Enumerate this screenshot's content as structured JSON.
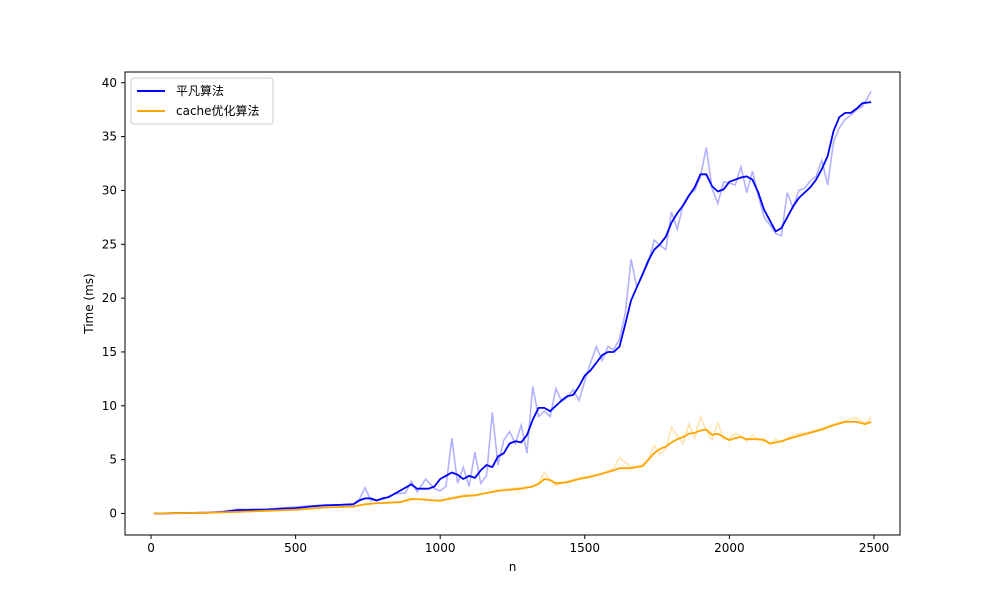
{
  "chart_data": {
    "type": "line",
    "xlabel": "n",
    "ylabel": "Time (ms)",
    "xlim": [
      -90,
      2590
    ],
    "ylim": [
      -2,
      41
    ],
    "xticks": [
      0,
      500,
      1000,
      1500,
      2000,
      2500
    ],
    "yticks": [
      0,
      5,
      10,
      15,
      20,
      25,
      30,
      35,
      40
    ],
    "grid": false,
    "legend_position": "upper-left",
    "series": [
      {
        "name": "平凡算法",
        "color": "#0000ff",
        "raw_opacity": 0.3,
        "raw_x": [
          10,
          100,
          200,
          250,
          300,
          350,
          400,
          450,
          500,
          550,
          600,
          650,
          700,
          720,
          740,
          760,
          800,
          840,
          880,
          900,
          920,
          950,
          980,
          1000,
          1020,
          1040,
          1060,
          1080,
          1100,
          1120,
          1140,
          1160,
          1180,
          1200,
          1220,
          1240,
          1260,
          1280,
          1300,
          1320,
          1340,
          1360,
          1380,
          1400,
          1420,
          1440,
          1460,
          1480,
          1500,
          1520,
          1540,
          1560,
          1580,
          1600,
          1620,
          1640,
          1660,
          1680,
          1700,
          1720,
          1740,
          1760,
          1780,
          1800,
          1820,
          1840,
          1860,
          1880,
          1900,
          1920,
          1940,
          1960,
          1980,
          2000,
          2020,
          2040,
          2060,
          2080,
          2100,
          2120,
          2140,
          2160,
          2180,
          2200,
          2220,
          2240,
          2260,
          2280,
          2300,
          2320,
          2340,
          2360,
          2380,
          2400,
          2420,
          2440,
          2460,
          2490
        ],
        "raw_y": [
          0.0,
          0.05,
          0.1,
          0.2,
          0.4,
          0.3,
          0.4,
          0.5,
          0.6,
          0.7,
          0.8,
          0.8,
          0.9,
          1.3,
          2.4,
          1.2,
          1.3,
          1.8,
          1.9,
          3.0,
          2.0,
          3.2,
          2.3,
          2.1,
          2.5,
          7.0,
          2.8,
          4.3,
          2.5,
          5.7,
          2.8,
          3.5,
          9.4,
          4.5,
          6.8,
          7.6,
          6.5,
          8.2,
          5.6,
          11.8,
          9.0,
          9.5,
          9.0,
          11.6,
          10.4,
          10.8,
          11.5,
          10.5,
          12.3,
          14.0,
          15.5,
          14.2,
          15.5,
          15.2,
          16.2,
          18.6,
          23.6,
          21.0,
          22.3,
          23.3,
          25.4,
          24.9,
          24.5,
          28.0,
          26.4,
          28.7,
          29.6,
          30.0,
          31.3,
          34.0,
          30.2,
          28.8,
          30.8,
          30.7,
          30.5,
          32.2,
          29.8,
          31.8,
          29.5,
          27.5,
          26.8,
          26.0,
          25.8,
          29.8,
          28.4,
          30.0,
          30.2,
          30.9,
          31.3,
          32.8,
          30.5,
          34.5,
          35.8,
          36.6,
          37.0,
          37.5,
          37.8,
          39.2
        ]
      },
      {
        "name": "cache优化算法",
        "color": "#ffa500",
        "raw_opacity": 0.3,
        "raw_x": [
          10,
          100,
          200,
          300,
          400,
          500,
          600,
          700,
          760,
          800,
          840,
          880,
          900,
          940,
          980,
          1000,
          1040,
          1080,
          1120,
          1160,
          1200,
          1240,
          1280,
          1320,
          1340,
          1360,
          1380,
          1400,
          1440,
          1480,
          1520,
          1560,
          1600,
          1620,
          1660,
          1700,
          1720,
          1740,
          1760,
          1780,
          1800,
          1820,
          1840,
          1860,
          1880,
          1900,
          1920,
          1940,
          1960,
          1980,
          2000,
          2020,
          2040,
          2060,
          2080,
          2100,
          2120,
          2140,
          2160,
          2180,
          2200,
          2240,
          2280,
          2320,
          2360,
          2400,
          2440,
          2470,
          2490
        ],
        "raw_y": [
          0.0,
          0.03,
          0.07,
          0.15,
          0.25,
          0.35,
          0.55,
          0.65,
          0.9,
          0.95,
          1.0,
          1.1,
          1.25,
          1.35,
          1.25,
          1.1,
          1.5,
          1.7,
          1.6,
          1.9,
          2.2,
          2.3,
          2.4,
          2.5,
          2.8,
          3.8,
          3.1,
          2.6,
          3.0,
          3.3,
          3.5,
          3.7,
          4.2,
          5.2,
          4.3,
          4.5,
          5.0,
          6.3,
          5.5,
          6.0,
          8.0,
          7.2,
          6.5,
          8.3,
          7.0,
          9.0,
          7.7,
          6.8,
          8.4,
          6.9,
          7.0,
          7.4,
          7.2,
          6.7,
          7.3,
          6.8,
          7.0,
          6.4,
          6.9,
          6.6,
          7.0,
          7.4,
          7.6,
          7.9,
          8.3,
          8.6,
          8.9,
          8.3,
          9.0
        ]
      }
    ],
    "smoothed": [
      {
        "name": "平凡算法",
        "x": [
          10,
          100,
          200,
          250,
          300,
          350,
          400,
          450,
          500,
          550,
          600,
          650,
          700,
          720,
          740,
          760,
          780,
          800,
          820,
          840,
          860,
          880,
          900,
          920,
          940,
          960,
          980,
          1000,
          1020,
          1040,
          1060,
          1080,
          1100,
          1120,
          1140,
          1160,
          1180,
          1200,
          1220,
          1240,
          1260,
          1280,
          1300,
          1320,
          1340,
          1360,
          1380,
          1400,
          1420,
          1440,
          1460,
          1480,
          1500,
          1520,
          1540,
          1560,
          1580,
          1600,
          1620,
          1640,
          1660,
          1680,
          1700,
          1720,
          1740,
          1760,
          1780,
          1800,
          1820,
          1840,
          1860,
          1880,
          1900,
          1920,
          1940,
          1960,
          1980,
          2000,
          2020,
          2040,
          2060,
          2080,
          2100,
          2120,
          2140,
          2160,
          2180,
          2200,
          2220,
          2240,
          2260,
          2280,
          2300,
          2320,
          2340,
          2360,
          2380,
          2400,
          2420,
          2440,
          2460,
          2490
        ],
        "y": [
          0.0,
          0.03,
          0.07,
          0.15,
          0.3,
          0.35,
          0.35,
          0.45,
          0.5,
          0.65,
          0.75,
          0.8,
          0.85,
          1.2,
          1.4,
          1.4,
          1.2,
          1.4,
          1.5,
          1.8,
          2.1,
          2.4,
          2.7,
          2.3,
          2.3,
          2.3,
          2.5,
          3.2,
          3.5,
          3.8,
          3.6,
          3.2,
          3.5,
          3.3,
          4.0,
          4.5,
          4.3,
          5.3,
          5.6,
          6.5,
          6.7,
          6.6,
          7.3,
          8.7,
          9.8,
          9.8,
          9.5,
          10.0,
          10.5,
          10.9,
          11.0,
          11.8,
          12.8,
          13.3,
          14.0,
          14.7,
          15.0,
          15.0,
          15.5,
          17.6,
          19.8,
          21.0,
          22.2,
          23.5,
          24.5,
          25.0,
          25.7,
          27.0,
          27.9,
          28.6,
          29.5,
          30.3,
          31.5,
          31.5,
          30.4,
          29.9,
          30.1,
          30.8,
          31.0,
          31.2,
          31.3,
          31.0,
          29.8,
          28.2,
          27.2,
          26.2,
          26.5,
          27.5,
          28.5,
          29.3,
          29.8,
          30.3,
          31.0,
          32.0,
          33.2,
          35.5,
          36.8,
          37.2,
          37.2,
          37.6,
          38.1,
          38.2
        ]
      },
      {
        "name": "cache优化算法",
        "x": [
          10,
          100,
          200,
          300,
          400,
          500,
          600,
          700,
          740,
          780,
          820,
          860,
          900,
          940,
          980,
          1000,
          1040,
          1080,
          1120,
          1160,
          1200,
          1240,
          1280,
          1320,
          1340,
          1360,
          1380,
          1400,
          1440,
          1480,
          1520,
          1560,
          1600,
          1620,
          1660,
          1700,
          1720,
          1740,
          1760,
          1780,
          1800,
          1820,
          1840,
          1860,
          1880,
          1900,
          1920,
          1940,
          1960,
          1980,
          2000,
          2020,
          2040,
          2060,
          2080,
          2100,
          2120,
          2140,
          2160,
          2180,
          2200,
          2240,
          2280,
          2320,
          2360,
          2400,
          2440,
          2470,
          2490
        ],
        "y": [
          0.0,
          0.03,
          0.07,
          0.15,
          0.25,
          0.35,
          0.55,
          0.65,
          0.85,
          0.95,
          1.0,
          1.05,
          1.35,
          1.3,
          1.2,
          1.2,
          1.4,
          1.6,
          1.7,
          1.9,
          2.1,
          2.2,
          2.3,
          2.5,
          2.75,
          3.2,
          3.1,
          2.8,
          2.9,
          3.2,
          3.4,
          3.7,
          4.0,
          4.2,
          4.2,
          4.4,
          5.0,
          5.6,
          6.0,
          6.2,
          6.6,
          6.9,
          7.1,
          7.4,
          7.5,
          7.7,
          7.8,
          7.3,
          7.4,
          7.1,
          6.8,
          7.0,
          7.1,
          6.9,
          6.9,
          6.9,
          6.8,
          6.5,
          6.6,
          6.7,
          6.9,
          7.2,
          7.5,
          7.8,
          8.2,
          8.5,
          8.5,
          8.3,
          8.5
        ]
      }
    ]
  }
}
